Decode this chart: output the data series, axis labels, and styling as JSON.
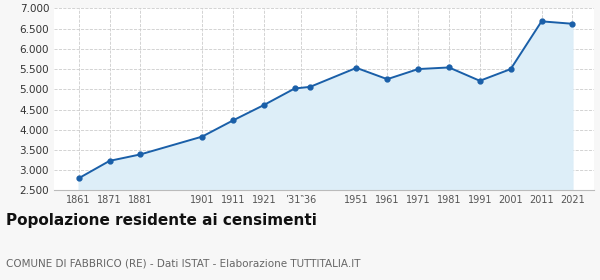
{
  "years": [
    1861,
    1871,
    1881,
    1901,
    1911,
    1921,
    1931,
    1936,
    1951,
    1961,
    1971,
    1981,
    1991,
    2001,
    2011,
    2021
  ],
  "population": [
    2800,
    3230,
    3390,
    3830,
    4230,
    4610,
    5020,
    5060,
    5530,
    5250,
    5500,
    5540,
    5210,
    5500,
    6680,
    6620
  ],
  "line_color": "#1a5fa8",
  "fill_color": "#ddeef8",
  "grid_color": "#cccccc",
  "bg_color": "#ffffff",
  "fig_bg_color": "#f7f7f7",
  "ylim": [
    2500,
    7000
  ],
  "yticks": [
    2500,
    3000,
    3500,
    4000,
    4500,
    5000,
    5500,
    6000,
    6500,
    7000
  ],
  "x_tick_positions": [
    1861,
    1871,
    1881,
    1901,
    1911,
    1921,
    1933,
    1951,
    1961,
    1971,
    1981,
    1991,
    2001,
    2011,
    2021
  ],
  "x_tick_labels": [
    "1861",
    "1871",
    "1881",
    "1901",
    "1911",
    "1921",
    "’31‶36",
    "1951",
    "1961",
    "1971",
    "1981",
    "1991",
    "2001",
    "2011",
    "2021"
  ],
  "xlim": [
    1853,
    2028
  ],
  "title": "Popolazione residente ai censimenti",
  "subtitle": "COMUNE DI FABBRICO (RE) - Dati ISTAT - Elaborazione TUTTITALIA.IT",
  "title_fontsize": 11,
  "subtitle_fontsize": 7.5
}
